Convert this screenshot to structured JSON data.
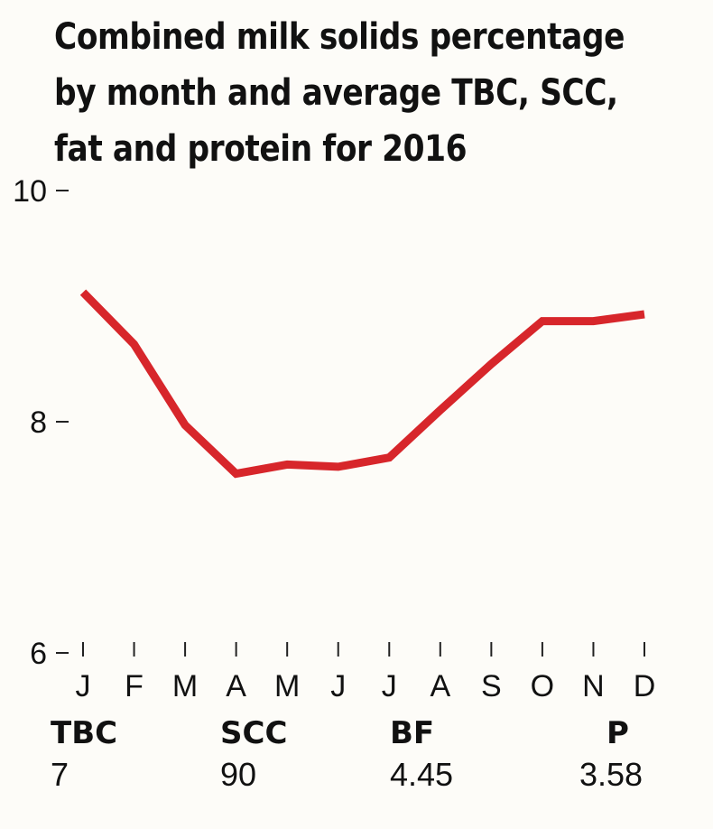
{
  "title_lines": [
    "Combined milk solids percentage",
    "by month and average TBC, SCC,",
    "fat and protein for 2016"
  ],
  "accent_color": "#d7262b",
  "chart_data": {
    "type": "line",
    "title": "Combined milk solids percentage by month and average TBC, SCC, fat and protein for 2016",
    "xlabel": "",
    "ylabel": "",
    "categories": [
      "J",
      "F",
      "M",
      "A",
      "M",
      "J",
      "J",
      "A",
      "S",
      "O",
      "N",
      "D"
    ],
    "series": [
      {
        "values": [
          9.12,
          8.67,
          7.97,
          7.55,
          7.63,
          7.61,
          7.69,
          8.1,
          8.5,
          8.87,
          8.87,
          8.93
        ],
        "color": "#d7262b"
      }
    ],
    "ylim": [
      6,
      10
    ],
    "yticks": [
      {
        "value": 10,
        "label": "10"
      },
      {
        "value": 8,
        "label": "8"
      },
      {
        "value": 6,
        "label": "6"
      }
    ],
    "grid": false,
    "legend": "none"
  },
  "stats": [
    {
      "label": "TBC",
      "value": "7"
    },
    {
      "label": "SCC",
      "value": "90"
    },
    {
      "label": "BF",
      "value": "4.45"
    },
    {
      "label": "P",
      "value": "3.58"
    }
  ]
}
